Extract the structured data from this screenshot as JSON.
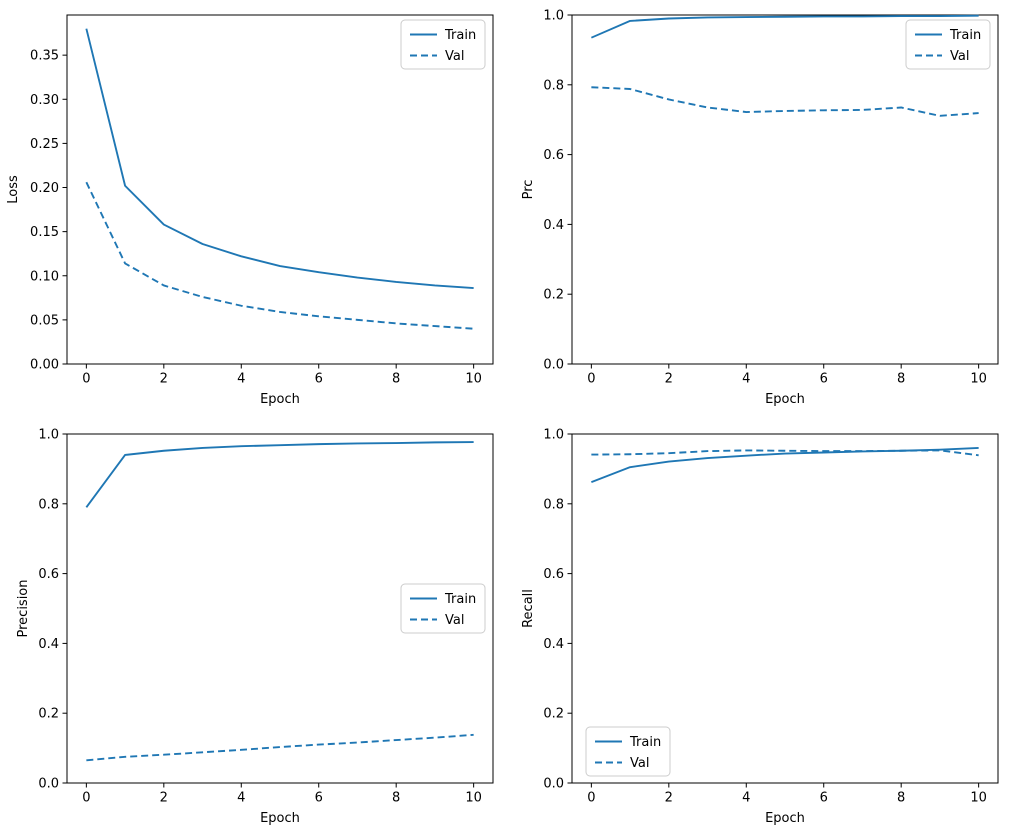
{
  "figure": {
    "background": "#ffffff",
    "line_color": "#1f77b4",
    "axis_color": "#000000",
    "legend_labels": {
      "train": "Train",
      "val": "Val"
    }
  },
  "chart_data": [
    {
      "type": "line",
      "title": "",
      "ylabel": "Loss",
      "xlabel": "Epoch",
      "x": [
        0,
        1,
        2,
        3,
        4,
        5,
        6,
        7,
        8,
        9,
        10
      ],
      "series": [
        {
          "name": "Train",
          "style": "solid",
          "values": [
            0.38,
            0.202,
            0.158,
            0.136,
            0.122,
            0.111,
            0.104,
            0.098,
            0.093,
            0.089,
            0.086
          ]
        },
        {
          "name": "Val",
          "style": "dashed",
          "values": [
            0.206,
            0.114,
            0.089,
            0.076,
            0.066,
            0.059,
            0.054,
            0.05,
            0.046,
            0.043,
            0.04
          ]
        }
      ],
      "xlim": [
        -0.5,
        10.5
      ],
      "ylim": [
        0,
        0.3955
      ],
      "xticks": [
        0,
        2,
        4,
        6,
        8,
        10
      ],
      "xtick_labels": [
        "0",
        "2",
        "4",
        "6",
        "8",
        "10"
      ],
      "yticks": [
        0.0,
        0.05,
        0.1,
        0.15,
        0.2,
        0.25,
        0.3,
        0.35
      ],
      "ytick_labels": [
        "0.00",
        "0.05",
        "0.10",
        "0.15",
        "0.20",
        "0.25",
        "0.30",
        "0.35"
      ],
      "legend_position": "upper-right",
      "grid": false
    },
    {
      "type": "line",
      "title": "",
      "ylabel": "Prc",
      "xlabel": "Epoch",
      "x": [
        0,
        1,
        2,
        3,
        4,
        5,
        6,
        7,
        8,
        9,
        10
      ],
      "series": [
        {
          "name": "Train",
          "style": "solid",
          "values": [
            0.935,
            0.983,
            0.99,
            0.993,
            0.994,
            0.995,
            0.996,
            0.996,
            0.997,
            0.997,
            0.998
          ]
        },
        {
          "name": "Val",
          "style": "dashed",
          "values": [
            0.793,
            0.788,
            0.758,
            0.735,
            0.722,
            0.725,
            0.727,
            0.728,
            0.735,
            0.711,
            0.719
          ]
        }
      ],
      "xlim": [
        -0.5,
        10.5
      ],
      "ylim": [
        0,
        1.0
      ],
      "xticks": [
        0,
        2,
        4,
        6,
        8,
        10
      ],
      "xtick_labels": [
        "0",
        "2",
        "4",
        "6",
        "8",
        "10"
      ],
      "yticks": [
        0.0,
        0.2,
        0.4,
        0.6,
        0.8,
        1.0
      ],
      "ytick_labels": [
        "0.0",
        "0.2",
        "0.4",
        "0.6",
        "0.8",
        "1.0"
      ],
      "legend_position": "upper-right",
      "grid": false
    },
    {
      "type": "line",
      "title": "",
      "ylabel": "Precision",
      "xlabel": "Epoch",
      "x": [
        0,
        1,
        2,
        3,
        4,
        5,
        6,
        7,
        8,
        9,
        10
      ],
      "series": [
        {
          "name": "Train",
          "style": "solid",
          "values": [
            0.79,
            0.94,
            0.952,
            0.96,
            0.965,
            0.968,
            0.971,
            0.973,
            0.974,
            0.976,
            0.977
          ]
        },
        {
          "name": "Val",
          "style": "dashed",
          "values": [
            0.065,
            0.075,
            0.081,
            0.088,
            0.095,
            0.103,
            0.11,
            0.116,
            0.123,
            0.13,
            0.138
          ]
        }
      ],
      "xlim": [
        -0.5,
        10.5
      ],
      "ylim": [
        0,
        1.0
      ],
      "xticks": [
        0,
        2,
        4,
        6,
        8,
        10
      ],
      "xtick_labels": [
        "0",
        "2",
        "4",
        "6",
        "8",
        "10"
      ],
      "yticks": [
        0.0,
        0.2,
        0.4,
        0.6,
        0.8,
        1.0
      ],
      "ytick_labels": [
        "0.0",
        "0.2",
        "0.4",
        "0.6",
        "0.8",
        "1.0"
      ],
      "legend_position": "center-right",
      "grid": false
    },
    {
      "type": "line",
      "title": "",
      "ylabel": "Recall",
      "xlabel": "Epoch",
      "x": [
        0,
        1,
        2,
        3,
        4,
        5,
        6,
        7,
        8,
        9,
        10
      ],
      "series": [
        {
          "name": "Train",
          "style": "solid",
          "values": [
            0.862,
            0.905,
            0.921,
            0.931,
            0.938,
            0.944,
            0.947,
            0.95,
            0.952,
            0.955,
            0.96
          ]
        },
        {
          "name": "Val",
          "style": "dashed",
          "values": [
            0.941,
            0.942,
            0.945,
            0.951,
            0.953,
            0.952,
            0.951,
            0.951,
            0.952,
            0.953,
            0.939
          ]
        }
      ],
      "xlim": [
        -0.5,
        10.5
      ],
      "ylim": [
        0,
        1.0
      ],
      "xticks": [
        0,
        2,
        4,
        6,
        8,
        10
      ],
      "xtick_labels": [
        "0",
        "2",
        "4",
        "6",
        "8",
        "10"
      ],
      "yticks": [
        0.0,
        0.2,
        0.4,
        0.6,
        0.8,
        1.0
      ],
      "ytick_labels": [
        "0.0",
        "0.2",
        "0.4",
        "0.6",
        "0.8",
        "1.0"
      ],
      "legend_position": "lower-left",
      "grid": false
    }
  ]
}
